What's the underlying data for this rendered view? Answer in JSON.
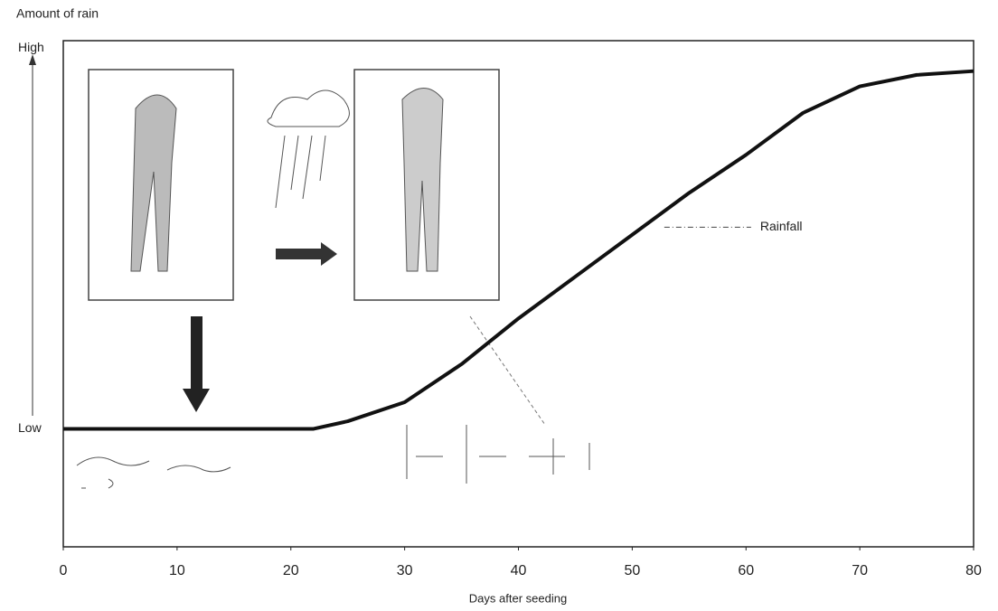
{
  "chart_data": {
    "type": "line",
    "y_label": "Amount of rain",
    "x_label": "Days after seeding",
    "x": [
      0,
      10,
      20,
      22,
      25,
      30,
      35,
      40,
      45,
      50,
      55,
      60,
      65,
      70,
      75,
      80
    ],
    "series": [
      {
        "name": "Rainfall",
        "color": "#111111",
        "values": [
          0,
          0,
          0,
          0,
          2,
          7,
          17,
          29,
          40,
          51,
          62,
          72,
          83,
          90,
          93,
          94
        ]
      }
    ],
    "xlim": [
      0,
      80
    ],
    "xticks": [
      0,
      10,
      20,
      30,
      40,
      50,
      60,
      70,
      80
    ],
    "ylim": [
      -31,
      102
    ],
    "yticks": [
      {
        "value": 0,
        "label": "Low"
      },
      {
        "value": 100,
        "label": "High"
      }
    ],
    "grid": false
  }
}
